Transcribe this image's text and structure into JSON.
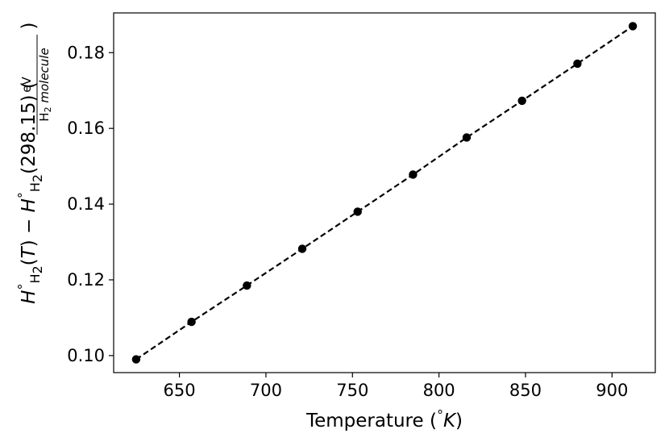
{
  "chart_data": {
    "type": "line",
    "xlabel": "Temperature (°K)",
    "ylabel": "H°H2(T) − H°H2(298.15) (eV / H2 molecule)",
    "ylabel_parts": {
      "h": "H",
      "degree": "°",
      "h2_sub": "H",
      "h2_sub_digit": "2",
      "open_T": "(",
      "t": "T",
      "close_T": ")",
      "minus": "−",
      "ref": "(298.15)",
      "unit_open": "(",
      "unit_num": "eV",
      "unit_den_h": "H",
      "unit_den_digit": "2",
      "unit_den_text": " molecule",
      "unit_close": ")"
    },
    "xlabel_parts": {
      "text": "Temperature (",
      "degree": "°",
      "k": "K",
      "close": ")"
    },
    "xlim": [
      612,
      925
    ],
    "ylim": [
      0.0955,
      0.1905
    ],
    "xticks": [
      650,
      700,
      750,
      800,
      850,
      900
    ],
    "xtick_labels": [
      "650",
      "700",
      "750",
      "800",
      "850",
      "900"
    ],
    "yticks": [
      0.1,
      0.12,
      0.14,
      0.16,
      0.18
    ],
    "ytick_labels": [
      "0.10",
      "0.12",
      "0.14",
      "0.16",
      "0.18"
    ],
    "grid": false,
    "series": [
      {
        "style": "black dots with dashed line",
        "color": "#000000",
        "x": [
          625,
          657,
          689,
          721,
          753,
          785,
          816,
          848,
          880,
          912
        ],
        "y": [
          0.099,
          0.1089,
          0.1185,
          0.1282,
          0.138,
          0.1478,
          0.1576,
          0.1673,
          0.1771,
          0.187
        ]
      }
    ]
  }
}
